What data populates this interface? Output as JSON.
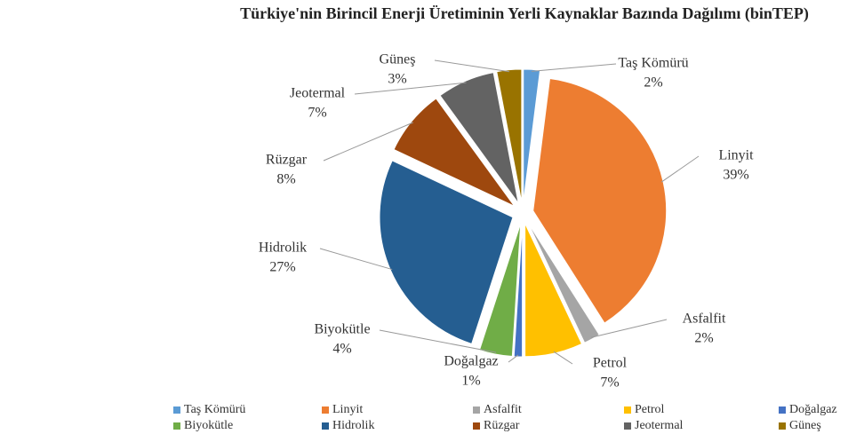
{
  "chart_data": {
    "type": "pie",
    "title": "Türkiye'nin Birincil Enerji Üretiminin Yerli Kaynaklar Bazında Dağılımı (binTEP)",
    "categories": [
      "Taş Kömürü",
      "Linyit",
      "Asfalfit",
      "Petrol",
      "Doğalgaz",
      "Biyokütle",
      "Hidrolik",
      "Rüzgar",
      "Jeotermal",
      "Güneş"
    ],
    "values": [
      2,
      39,
      2,
      7,
      1,
      4,
      27,
      8,
      7,
      3
    ],
    "value_labels": [
      "2%",
      "39%",
      "2%",
      "7%",
      "1%",
      "4%",
      "27%",
      "8%",
      "7%",
      "3%"
    ],
    "colors": [
      "#5b9bd5",
      "#ed7d31",
      "#a5a5a5",
      "#ffc000",
      "#4472c4",
      "#70ad47",
      "#255e91",
      "#9e480e",
      "#636363",
      "#997300"
    ],
    "legend": "bottom"
  }
}
